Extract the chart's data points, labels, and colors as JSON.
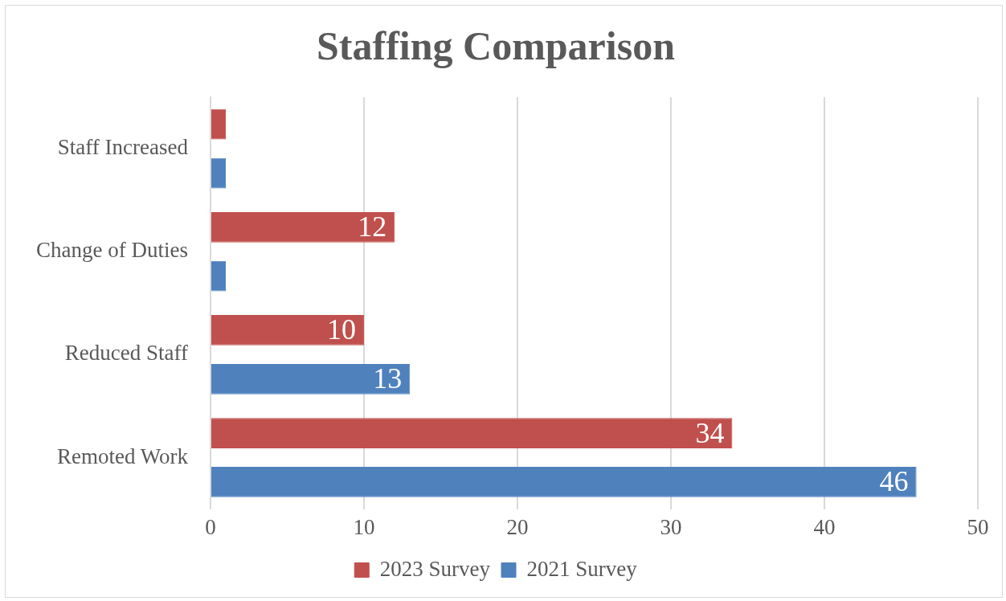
{
  "chart_data": {
    "type": "bar",
    "orientation": "horizontal",
    "title": "Staffing Comparison",
    "categories": [
      "Staff Increased",
      "Change of Duties",
      "Reduced Staff",
      "Remoted Work"
    ],
    "series": [
      {
        "name": "2023 Survey",
        "color": "#c0504d",
        "values": [
          1,
          12,
          10,
          34
        ],
        "value_labels": [
          null,
          "12",
          "10",
          "34"
        ]
      },
      {
        "name": "2021 Survey",
        "color": "#4f81bd",
        "values": [
          1,
          1,
          13,
          46
        ],
        "value_labels": [
          null,
          null,
          "13",
          "46"
        ]
      }
    ],
    "xlim": [
      0,
      50
    ],
    "xticks": [
      0,
      10,
      20,
      30,
      40,
      50
    ],
    "grid": "x",
    "legend": "bottom"
  }
}
